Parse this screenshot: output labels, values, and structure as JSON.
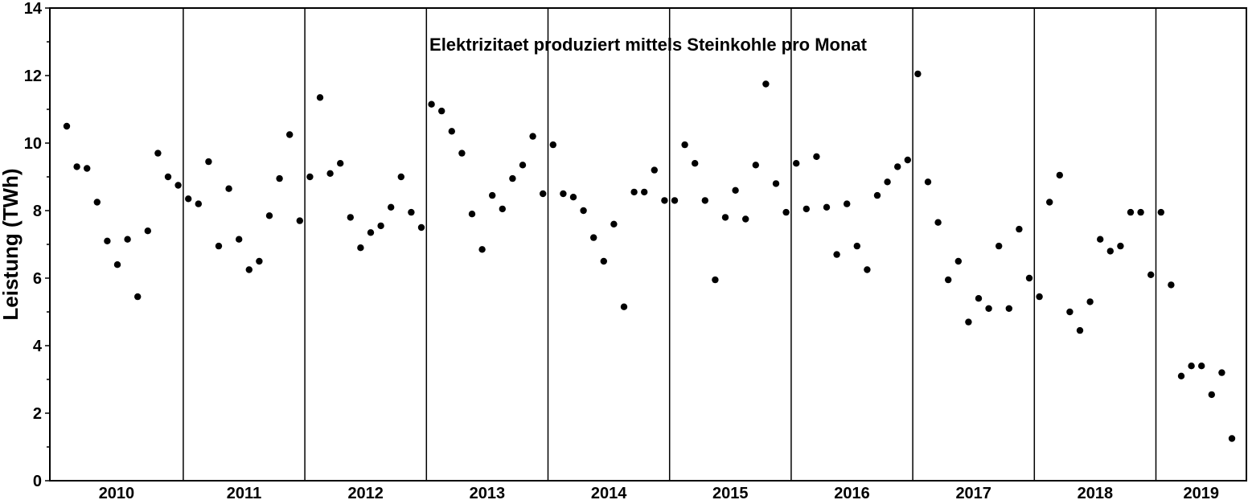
{
  "chart_data": {
    "type": "scatter",
    "title": "Elektrizitaet produziert mittels Steinkohle pro Monat",
    "xlabel": "",
    "ylabel": "Leistung (TWh)",
    "ylim": [
      0,
      14
    ],
    "yticks": [
      0,
      2,
      4,
      6,
      8,
      10,
      12,
      14
    ],
    "grid": false,
    "legend": "none",
    "marker_color": "#000000",
    "years": [
      "2010",
      "2011",
      "2012",
      "2013",
      "2014",
      "2015",
      "2016",
      "2017",
      "2018",
      "2019"
    ],
    "series": [
      {
        "x": [
          "2010-01",
          "2010-02",
          "2010-03",
          "2010-04",
          "2010-05",
          "2010-06",
          "2010-07",
          "2010-08",
          "2010-09",
          "2010-10",
          "2010-11",
          "2010-12",
          "2011-01",
          "2011-02",
          "2011-03",
          "2011-04",
          "2011-05",
          "2011-06",
          "2011-07",
          "2011-08",
          "2011-09",
          "2011-10",
          "2011-11",
          "2011-12",
          "2012-01",
          "2012-02",
          "2012-03",
          "2012-04",
          "2012-05",
          "2012-06",
          "2012-07",
          "2012-08",
          "2012-09",
          "2012-10",
          "2012-11",
          "2012-12",
          "2013-01",
          "2013-02",
          "2013-03",
          "2013-04",
          "2013-05",
          "2013-06",
          "2013-07",
          "2013-08",
          "2013-09",
          "2013-10",
          "2013-11",
          "2013-12",
          "2014-01",
          "2014-02",
          "2014-03",
          "2014-04",
          "2014-05",
          "2014-06",
          "2014-07",
          "2014-08",
          "2014-09",
          "2014-10",
          "2014-11",
          "2014-12",
          "2015-01",
          "2015-02",
          "2015-03",
          "2015-04",
          "2015-05",
          "2015-06",
          "2015-07",
          "2015-08",
          "2015-09",
          "2015-10",
          "2015-11",
          "2015-12",
          "2016-01",
          "2016-02",
          "2016-03",
          "2016-04",
          "2016-05",
          "2016-06",
          "2016-07",
          "2016-08",
          "2016-09",
          "2016-10",
          "2016-11",
          "2016-12",
          "2017-01",
          "2017-02",
          "2017-03",
          "2017-04",
          "2017-05",
          "2017-06",
          "2017-07",
          "2017-08",
          "2017-09",
          "2017-10",
          "2017-11",
          "2017-12",
          "2018-01",
          "2018-02",
          "2018-03",
          "2018-04",
          "2018-05",
          "2018-06",
          "2018-07",
          "2018-08",
          "2018-09",
          "2018-10",
          "2018-11",
          "2018-12",
          "2019-01",
          "2019-02",
          "2019-03",
          "2019-04",
          "2019-05",
          "2019-06",
          "2019-07",
          "2019-08"
        ],
        "y": [
          10.5,
          9.3,
          9.25,
          8.25,
          7.1,
          6.4,
          7.15,
          5.45,
          7.4,
          9.7,
          9.0,
          8.75,
          8.35,
          8.2,
          9.45,
          6.95,
          8.65,
          7.15,
          6.25,
          6.5,
          7.85,
          8.95,
          10.25,
          7.7,
          9.0,
          11.35,
          9.1,
          9.4,
          7.8,
          6.9,
          7.35,
          7.55,
          8.1,
          9.0,
          7.95,
          7.5,
          11.15,
          10.95,
          10.35,
          9.7,
          7.9,
          6.85,
          8.45,
          8.05,
          8.95,
          9.35,
          10.2,
          8.5,
          9.95,
          8.5,
          8.4,
          8.0,
          7.2,
          6.5,
          7.6,
          5.15,
          8.55,
          8.55,
          9.2,
          8.3,
          8.3,
          9.95,
          9.4,
          8.3,
          5.95,
          7.8,
          8.6,
          7.75,
          9.35,
          11.75,
          8.8,
          7.95,
          9.4,
          8.05,
          9.6,
          8.1,
          6.7,
          8.2,
          6.95,
          6.25,
          8.45,
          8.85,
          9.3,
          9.5,
          12.05,
          8.85,
          7.65,
          5.95,
          6.5,
          4.7,
          5.4,
          5.1,
          6.95,
          5.1,
          7.45,
          6.0,
          5.45,
          8.25,
          9.05,
          5.0,
          4.45,
          5.3,
          7.15,
          6.8,
          6.95,
          7.95,
          7.95,
          6.1,
          7.95,
          5.8,
          3.1,
          3.4,
          3.4,
          2.55,
          3.2,
          1.25
        ]
      }
    ]
  }
}
